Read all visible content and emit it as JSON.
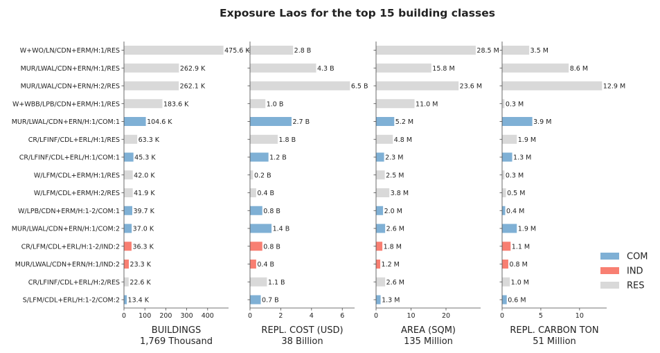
{
  "chart_data": {
    "type": "bar",
    "orientation": "horizontal",
    "title": "Exposure Laos for the top 15 building classes",
    "categories": [
      "W+WO/LN/CDN+ERM/H:1/RES",
      "MUR/LWAL/CDN+ERN/H:1/RES",
      "MUR/LWAL/CDN+ERN/H:2/RES",
      "W+WBB/LPB/CDN+ERM/H:1/RES",
      "MUR/LWAL/CDN+ERN/H:1/COM:1",
      "CR/LFINF/CDL+ERL/H:1/RES",
      "CR/LFINF/CDL+ERL/H:1/COM:1",
      "W/LFM/CDL+ERM/H:1/RES",
      "W/LFM/CDL+ERM/H:2/RES",
      "W/LPB/CDN+ERM/H:1-2/COM:1",
      "MUR/LWAL/CDN+ERN/H:1/COM:2",
      "CR/LFM/CDL+ERL/H:1-2/IND:2",
      "MUR/LWAL/CDN+ERN/H:1/IND:2",
      "CR/LFINF/CDL+ERL/H:2/RES",
      "S/LFM/CDL+ERL/H:1-2/COM:2"
    ],
    "occupancy": [
      "RES",
      "RES",
      "RES",
      "RES",
      "COM",
      "RES",
      "COM",
      "RES",
      "RES",
      "COM",
      "COM",
      "IND",
      "IND",
      "RES",
      "COM"
    ],
    "legend": {
      "placement": "lower-right",
      "entries": [
        {
          "name": "COM",
          "color": "#7fb0d5"
        },
        {
          "name": "IND",
          "color": "#f87f72"
        },
        {
          "name": "RES",
          "color": "#d9d9d9"
        }
      ]
    },
    "panels": [
      {
        "xlabel": "BUILDINGS",
        "total_label": "1,769 Thousand",
        "unit": "thousand buildings",
        "xlim": [
          0,
          500
        ],
        "ticks": [
          0,
          100,
          200,
          300,
          400
        ],
        "values": [
          475.6,
          262.9,
          262.1,
          183.6,
          104.6,
          63.3,
          45.3,
          42.0,
          41.9,
          39.7,
          37.0,
          36.3,
          23.3,
          22.6,
          13.4
        ],
        "labels": [
          "475.6 K",
          "262.9 K",
          "262.1 K",
          "183.6 K",
          "104.6 K",
          "63.3 K",
          "45.3 K",
          "42.0 K",
          "41.9 K",
          "39.7 K",
          "37.0 K",
          "36.3 K",
          "23.3 K",
          "22.6 K",
          "13.4 K"
        ]
      },
      {
        "xlabel": "REPL. COST (USD)",
        "total_label": "38 Billion",
        "unit": "billion USD",
        "xlim": [
          0,
          6.8
        ],
        "ticks": [
          0,
          2,
          4,
          6
        ],
        "values": [
          2.8,
          4.3,
          6.5,
          1.0,
          2.7,
          1.8,
          1.2,
          0.2,
          0.4,
          0.8,
          1.4,
          0.8,
          0.4,
          1.1,
          0.7
        ],
        "labels": [
          "2.8 B",
          "4.3 B",
          "6.5 B",
          "1.0 B",
          "2.7 B",
          "1.8 B",
          "1.2 B",
          "0.2 B",
          "0.4 B",
          "0.8 B",
          "1.4 B",
          "0.8 B",
          "0.4 B",
          "1.1 B",
          "0.7 B"
        ]
      },
      {
        "xlabel": "AREA (SQM)",
        "total_label": "135 Million",
        "unit": "million sqm",
        "xlim": [
          0,
          29.9
        ],
        "ticks": [
          0,
          10,
          20
        ],
        "values": [
          28.5,
          15.8,
          23.6,
          11.0,
          5.2,
          4.8,
          2.3,
          2.5,
          3.8,
          2.0,
          2.6,
          1.8,
          1.2,
          2.6,
          1.3
        ],
        "labels": [
          "28.5 M",
          "15.8 M",
          "23.6 M",
          "11.0 M",
          "5.2 M",
          "4.8 M",
          "2.3 M",
          "2.5 M",
          "3.8 M",
          "2.0 M",
          "2.6 M",
          "1.8 M",
          "1.2 M",
          "2.6 M",
          "1.3 M"
        ]
      },
      {
        "xlabel": "REPL. CARBON TON",
        "total_label": "51 Million",
        "unit": "million tons",
        "xlim": [
          0,
          13.5
        ],
        "ticks": [
          0,
          5,
          10
        ],
        "values": [
          3.5,
          8.6,
          12.9,
          0.3,
          3.9,
          1.9,
          1.3,
          0.3,
          0.5,
          0.4,
          1.9,
          1.1,
          0.8,
          1.0,
          0.6
        ],
        "labels": [
          "3.5 M",
          "8.6 M",
          "12.9 M",
          "0.3 M",
          "3.9 M",
          "1.9 M",
          "1.3 M",
          "0.3 M",
          "0.5 M",
          "0.4 M",
          "1.9 M",
          "1.1 M",
          "0.8 M",
          "1.0 M",
          "0.6 M"
        ]
      }
    ]
  }
}
